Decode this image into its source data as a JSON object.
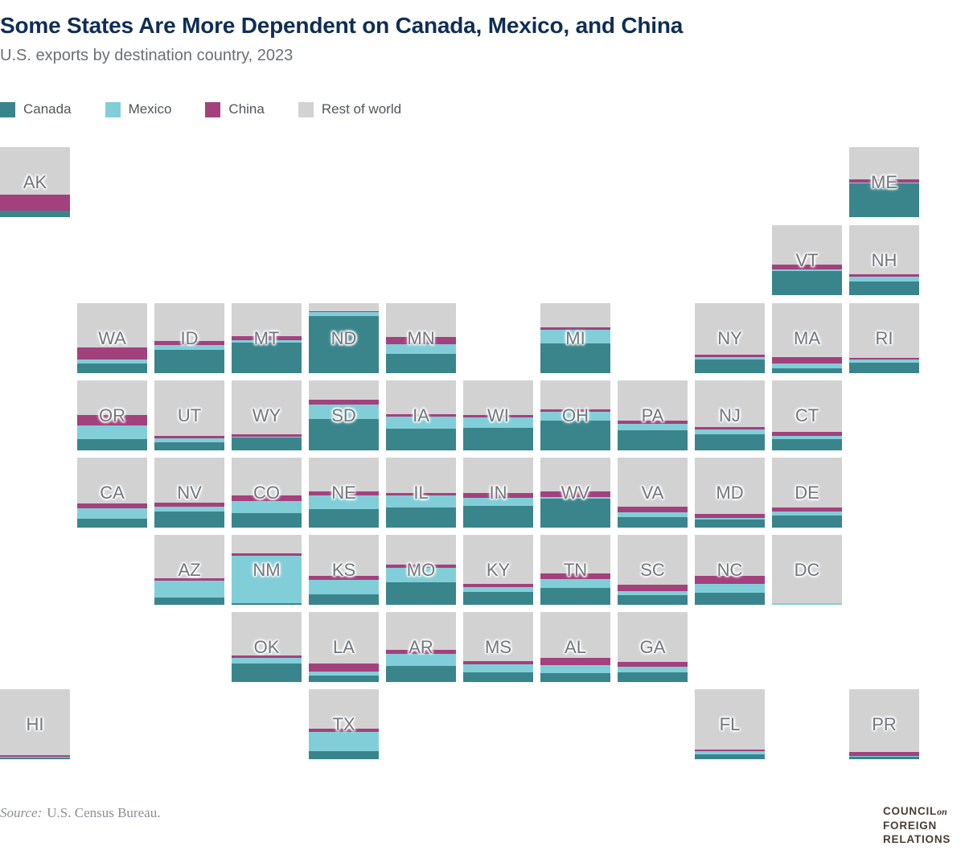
{
  "header": {
    "title": "Some States Are More Dependent on Canada, Mexico, and China",
    "subtitle": "U.S. exports by destination country, 2023"
  },
  "legend": [
    {
      "label": "Canada",
      "color": "#3a858c"
    },
    {
      "label": "Mexico",
      "color": "#82ced8"
    },
    {
      "label": "China",
      "color": "#a3417c"
    },
    {
      "label": "Rest of world",
      "color": "#d2d2d2"
    }
  ],
  "footer": {
    "source_prefix": "Source:",
    "source_text": "U.S. Census Bureau.",
    "logo_council": "COUNCIL",
    "logo_on": "on",
    "logo_foreign": "FOREIGN",
    "logo_relations": "RELATIONS"
  },
  "chart_data": {
    "type": "heatmap",
    "subtype": "tile-grid-cartogram-stacked-bars",
    "title": "Some States Are More Dependent on Canada, Mexico, and China",
    "subtitle": "U.S. exports by destination country, 2023",
    "unit": "percent of state exports (share of tile height)",
    "legend_position": "top-left",
    "series_order_bottom_to_top": [
      "canada",
      "mexico",
      "china",
      "rest_of_world"
    ],
    "colors": {
      "canada": "#3a858c",
      "mexico": "#82ced8",
      "china": "#a3417c",
      "rest_of_world": "#d2d2d2"
    },
    "states": [
      {
        "abbr": "AK",
        "col": 0,
        "row": 0,
        "canada": 9,
        "mexico": 0,
        "china": 23,
        "rest_of_world": 68
      },
      {
        "abbr": "ME",
        "col": 11,
        "row": 0,
        "canada": 48,
        "mexico": 2,
        "china": 4,
        "rest_of_world": 46
      },
      {
        "abbr": "VT",
        "col": 10,
        "row": 1,
        "canada": 34,
        "mexico": 3,
        "china": 7,
        "rest_of_world": 56
      },
      {
        "abbr": "NH",
        "col": 11,
        "row": 1,
        "canada": 19,
        "mexico": 8,
        "china": 3,
        "rest_of_world": 70
      },
      {
        "abbr": "WA",
        "col": 1,
        "row": 2,
        "canada": 14,
        "mexico": 6,
        "china": 17,
        "rest_of_world": 63
      },
      {
        "abbr": "ID",
        "col": 2,
        "row": 2,
        "canada": 33,
        "mexico": 7,
        "china": 6,
        "rest_of_world": 54
      },
      {
        "abbr": "MT",
        "col": 3,
        "row": 2,
        "canada": 44,
        "mexico": 3,
        "china": 6,
        "rest_of_world": 47
      },
      {
        "abbr": "ND",
        "col": 4,
        "row": 2,
        "canada": 82,
        "mexico": 6,
        "china": 1,
        "rest_of_world": 11
      },
      {
        "abbr": "MN",
        "col": 5,
        "row": 2,
        "canada": 28,
        "mexico": 13,
        "china": 11,
        "rest_of_world": 48
      },
      {
        "abbr": "MI",
        "col": 7,
        "row": 2,
        "canada": 42,
        "mexico": 20,
        "china": 3,
        "rest_of_world": 35
      },
      {
        "abbr": "NY",
        "col": 9,
        "row": 2,
        "canada": 19,
        "mexico": 4,
        "china": 3,
        "rest_of_world": 74
      },
      {
        "abbr": "MA",
        "col": 10,
        "row": 2,
        "canada": 7,
        "mexico": 7,
        "china": 9,
        "rest_of_world": 77
      },
      {
        "abbr": "RI",
        "col": 11,
        "row": 2,
        "canada": 15,
        "mexico": 4,
        "china": 3,
        "rest_of_world": 78
      },
      {
        "abbr": "OR",
        "col": 1,
        "row": 3,
        "canada": 16,
        "mexico": 20,
        "china": 15,
        "rest_of_world": 49
      },
      {
        "abbr": "UT",
        "col": 2,
        "row": 3,
        "canada": 11,
        "mexico": 6,
        "china": 4,
        "rest_of_world": 79
      },
      {
        "abbr": "WY",
        "col": 3,
        "row": 3,
        "canada": 18,
        "mexico": 2,
        "china": 3,
        "rest_of_world": 77
      },
      {
        "abbr": "SD",
        "col": 4,
        "row": 3,
        "canada": 45,
        "mexico": 21,
        "china": 7,
        "rest_of_world": 27
      },
      {
        "abbr": "IA",
        "col": 5,
        "row": 3,
        "canada": 31,
        "mexico": 17,
        "china": 4,
        "rest_of_world": 48
      },
      {
        "abbr": "WI",
        "col": 6,
        "row": 3,
        "canada": 32,
        "mexico": 15,
        "china": 4,
        "rest_of_world": 49
      },
      {
        "abbr": "OH",
        "col": 7,
        "row": 3,
        "canada": 42,
        "mexico": 13,
        "china": 4,
        "rest_of_world": 41
      },
      {
        "abbr": "PA",
        "col": 8,
        "row": 3,
        "canada": 29,
        "mexico": 9,
        "china": 5,
        "rest_of_world": 57
      },
      {
        "abbr": "NJ",
        "col": 9,
        "row": 3,
        "canada": 23,
        "mexico": 7,
        "china": 3,
        "rest_of_world": 67
      },
      {
        "abbr": "CT",
        "col": 10,
        "row": 3,
        "canada": 16,
        "mexico": 5,
        "china": 6,
        "rest_of_world": 73
      },
      {
        "abbr": "CA",
        "col": 1,
        "row": 4,
        "canada": 13,
        "mexico": 15,
        "china": 6,
        "rest_of_world": 66
      },
      {
        "abbr": "NV",
        "col": 2,
        "row": 4,
        "canada": 23,
        "mexico": 7,
        "china": 6,
        "rest_of_world": 64
      },
      {
        "abbr": "CO",
        "col": 3,
        "row": 4,
        "canada": 21,
        "mexico": 17,
        "china": 8,
        "rest_of_world": 54
      },
      {
        "abbr": "NE",
        "col": 4,
        "row": 4,
        "canada": 27,
        "mexico": 19,
        "china": 6,
        "rest_of_world": 48
      },
      {
        "abbr": "IL",
        "col": 5,
        "row": 4,
        "canada": 29,
        "mexico": 17,
        "china": 4,
        "rest_of_world": 50
      },
      {
        "abbr": "IN",
        "col": 6,
        "row": 4,
        "canada": 31,
        "mexico": 11,
        "china": 8,
        "rest_of_world": 50
      },
      {
        "abbr": "WV",
        "col": 7,
        "row": 4,
        "canada": 41,
        "mexico": 3,
        "china": 8,
        "rest_of_world": 48
      },
      {
        "abbr": "VA",
        "col": 8,
        "row": 4,
        "canada": 15,
        "mexico": 7,
        "china": 8,
        "rest_of_world": 70
      },
      {
        "abbr": "MD",
        "col": 9,
        "row": 4,
        "canada": 11,
        "mexico": 3,
        "china": 5,
        "rest_of_world": 81
      },
      {
        "abbr": "DE",
        "col": 10,
        "row": 4,
        "canada": 17,
        "mexico": 6,
        "china": 6,
        "rest_of_world": 71
      },
      {
        "abbr": "AZ",
        "col": 2,
        "row": 5,
        "canada": 10,
        "mexico": 24,
        "china": 4,
        "rest_of_world": 62
      },
      {
        "abbr": "NM",
        "col": 3,
        "row": 5,
        "canada": 2,
        "mexico": 68,
        "china": 4,
        "rest_of_world": 26
      },
      {
        "abbr": "KS",
        "col": 4,
        "row": 5,
        "canada": 15,
        "mexico": 21,
        "china": 5,
        "rest_of_world": 59
      },
      {
        "abbr": "MO",
        "col": 5,
        "row": 5,
        "canada": 32,
        "mexico": 21,
        "china": 4,
        "rest_of_world": 43
      },
      {
        "abbr": "KY",
        "col": 6,
        "row": 5,
        "canada": 18,
        "mexico": 7,
        "china": 5,
        "rest_of_world": 70
      },
      {
        "abbr": "TN",
        "col": 7,
        "row": 5,
        "canada": 24,
        "mexico": 13,
        "china": 8,
        "rest_of_world": 55
      },
      {
        "abbr": "SC",
        "col": 8,
        "row": 5,
        "canada": 14,
        "mexico": 6,
        "china": 9,
        "rest_of_world": 71
      },
      {
        "abbr": "NC",
        "col": 9,
        "row": 5,
        "canada": 17,
        "mexico": 13,
        "china": 11,
        "rest_of_world": 59
      },
      {
        "abbr": "DC",
        "col": 10,
        "row": 5,
        "canada": 0,
        "mexico": 2,
        "china": 0,
        "rest_of_world": 98
      },
      {
        "abbr": "OK",
        "col": 3,
        "row": 6,
        "canada": 27,
        "mexico": 8,
        "china": 3,
        "rest_of_world": 62
      },
      {
        "abbr": "LA",
        "col": 4,
        "row": 6,
        "canada": 9,
        "mexico": 6,
        "china": 11,
        "rest_of_world": 74
      },
      {
        "abbr": "AR",
        "col": 5,
        "row": 6,
        "canada": 23,
        "mexico": 17,
        "china": 6,
        "rest_of_world": 54
      },
      {
        "abbr": "MS",
        "col": 6,
        "row": 6,
        "canada": 14,
        "mexico": 11,
        "china": 5,
        "rest_of_world": 70
      },
      {
        "abbr": "AL",
        "col": 7,
        "row": 6,
        "canada": 13,
        "mexico": 11,
        "china": 11,
        "rest_of_world": 65
      },
      {
        "abbr": "GA",
        "col": 8,
        "row": 6,
        "canada": 14,
        "mexico": 8,
        "china": 7,
        "rest_of_world": 71
      },
      {
        "abbr": "HI",
        "col": 0,
        "row": 7,
        "canada": 2,
        "mexico": 2,
        "china": 2,
        "rest_of_world": 94
      },
      {
        "abbr": "TX",
        "col": 4,
        "row": 7,
        "canada": 11,
        "mexico": 28,
        "china": 5,
        "rest_of_world": 56
      },
      {
        "abbr": "FL",
        "col": 9,
        "row": 7,
        "canada": 7,
        "mexico": 4,
        "china": 3,
        "rest_of_world": 86
      },
      {
        "abbr": "PR",
        "col": 11,
        "row": 7,
        "canada": 3,
        "mexico": 2,
        "china": 5,
        "rest_of_world": 90
      }
    ]
  }
}
